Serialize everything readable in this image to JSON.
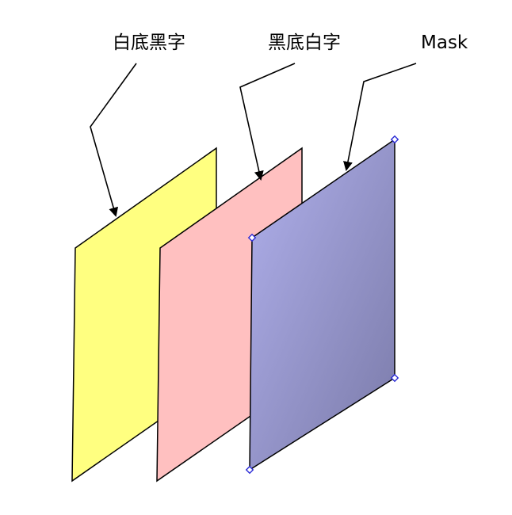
{
  "labels": {
    "white_bg_black_text": "白底黑字",
    "black_bg_white_text": "黑底白字",
    "mask": "Mask"
  },
  "colors": {
    "yellow_panel": "#ffff80",
    "pink_panel": "#ffc0c0",
    "mask_gradient_start": "#b0b0ec",
    "mask_gradient_end": "#7a7aa8",
    "selection_handle": "#2b2bd6"
  }
}
